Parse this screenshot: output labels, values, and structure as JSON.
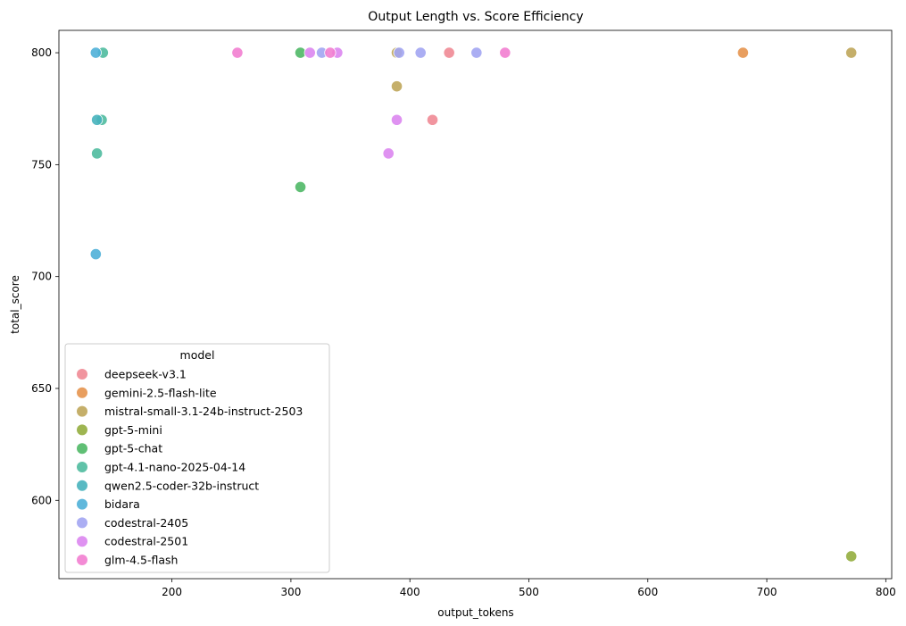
{
  "chart_data": {
    "type": "scatter",
    "title": "Output Length vs. Score Efficiency",
    "xlabel": "output_tokens",
    "ylabel": "total_score",
    "xlim": [
      105,
      805
    ],
    "ylim": [
      565,
      810
    ],
    "xticks": [
      200,
      300,
      400,
      500,
      600,
      700,
      800
    ],
    "yticks": [
      600,
      650,
      700,
      750,
      800
    ],
    "grid": false,
    "legend": {
      "title": "model",
      "placement": "lower-left"
    },
    "series": [
      {
        "name": "deepseek-v3.1",
        "color": "#f08a95",
        "points": [
          [
            433,
            800
          ],
          [
            419,
            770
          ]
        ]
      },
      {
        "name": "gemini-2.5-flash-lite",
        "color": "#e5934e",
        "points": [
          [
            680,
            800
          ]
        ]
      },
      {
        "name": "mistral-small-3.1-24b-instruct-2503",
        "color": "#bfa65a",
        "points": [
          [
            389,
            800
          ],
          [
            389,
            785
          ],
          [
            771,
            800
          ]
        ]
      },
      {
        "name": "gpt-5-mini",
        "color": "#93ad3e",
        "points": [
          [
            771,
            575
          ]
        ]
      },
      {
        "name": "gpt-5-chat",
        "color": "#4fb866",
        "points": [
          [
            308,
            800
          ],
          [
            308,
            740
          ]
        ]
      },
      {
        "name": "gpt-4.1-nano-2025-04-14",
        "color": "#4fbb9f",
        "points": [
          [
            142,
            800
          ],
          [
            141,
            770
          ],
          [
            137,
            755
          ]
        ]
      },
      {
        "name": "qwen2.5-coder-32b-instruct",
        "color": "#47b3bc",
        "points": [
          [
            137,
            770
          ]
        ]
      },
      {
        "name": "bidara",
        "color": "#4fb0d8",
        "points": [
          [
            136,
            800
          ],
          [
            136,
            710
          ]
        ]
      },
      {
        "name": "codestral-2405",
        "color": "#a2a5f2",
        "points": [
          [
            391,
            800
          ],
          [
            409,
            800
          ],
          [
            456,
            800
          ],
          [
            326,
            800
          ]
        ]
      },
      {
        "name": "codestral-2501",
        "color": "#dc86f0",
        "points": [
          [
            316,
            800
          ],
          [
            339,
            800
          ],
          [
            389,
            770
          ],
          [
            382,
            755
          ]
        ]
      },
      {
        "name": "glm-4.5-flash",
        "color": "#f27ed0",
        "points": [
          [
            255,
            800
          ],
          [
            480,
            800
          ],
          [
            333,
            800
          ]
        ]
      }
    ]
  }
}
